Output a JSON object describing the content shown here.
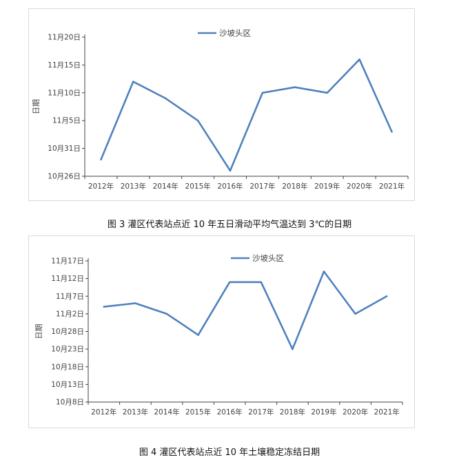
{
  "chart_data": [
    {
      "type": "line",
      "ylabel": "日期",
      "categories": [
        "2012年",
        "2013年",
        "2014年",
        "2015年",
        "2016年",
        "2017年",
        "2018年",
        "2019年",
        "2020年",
        "2021年"
      ],
      "y_tick_labels": [
        "10月26日",
        "10月31日",
        "11月5日",
        "11月10日",
        "11月15日",
        "11月20日"
      ],
      "ylim": [
        "10月26日",
        "11月20日"
      ],
      "series": [
        {
          "name": "沙坡头区",
          "color": "#4f81bd",
          "values": [
            "10月29日",
            "11月12日",
            "11月9日",
            "11月5日",
            "10月27日",
            "11月10日",
            "11月11日",
            "11月10日",
            "11月16日",
            "11月3日"
          ]
        }
      ],
      "legend_position": "top",
      "grid": false
    },
    {
      "type": "line",
      "ylabel": "日期",
      "categories": [
        "2012年",
        "2013年",
        "2014年",
        "2015年",
        "2016年",
        "2017年",
        "2018年",
        "2019年",
        "2020年",
        "2021年"
      ],
      "y_tick_labels": [
        "10月8日",
        "10月13日",
        "10月18日",
        "10月23日",
        "10月28日",
        "11月2日",
        "11月7日",
        "11月12日",
        "11月17日"
      ],
      "ylim": [
        "10月8日",
        "11月17日"
      ],
      "series": [
        {
          "name": "沙坡头区",
          "color": "#4f81bd",
          "values": [
            "11月4日",
            "11月5日",
            "11月2日",
            "10月27日",
            "11月11日",
            "11月11日",
            "10月23日",
            "11月14日",
            "11月2日",
            "11月7日"
          ]
        }
      ],
      "legend_position": "top",
      "grid": false
    }
  ],
  "captions": [
    "图 3  灌区代表站点近 10 年五日滑动平均气温达到 3℃的日期",
    "图 4  灌区代表站点近 10 年土壤稳定冻结日期"
  ]
}
